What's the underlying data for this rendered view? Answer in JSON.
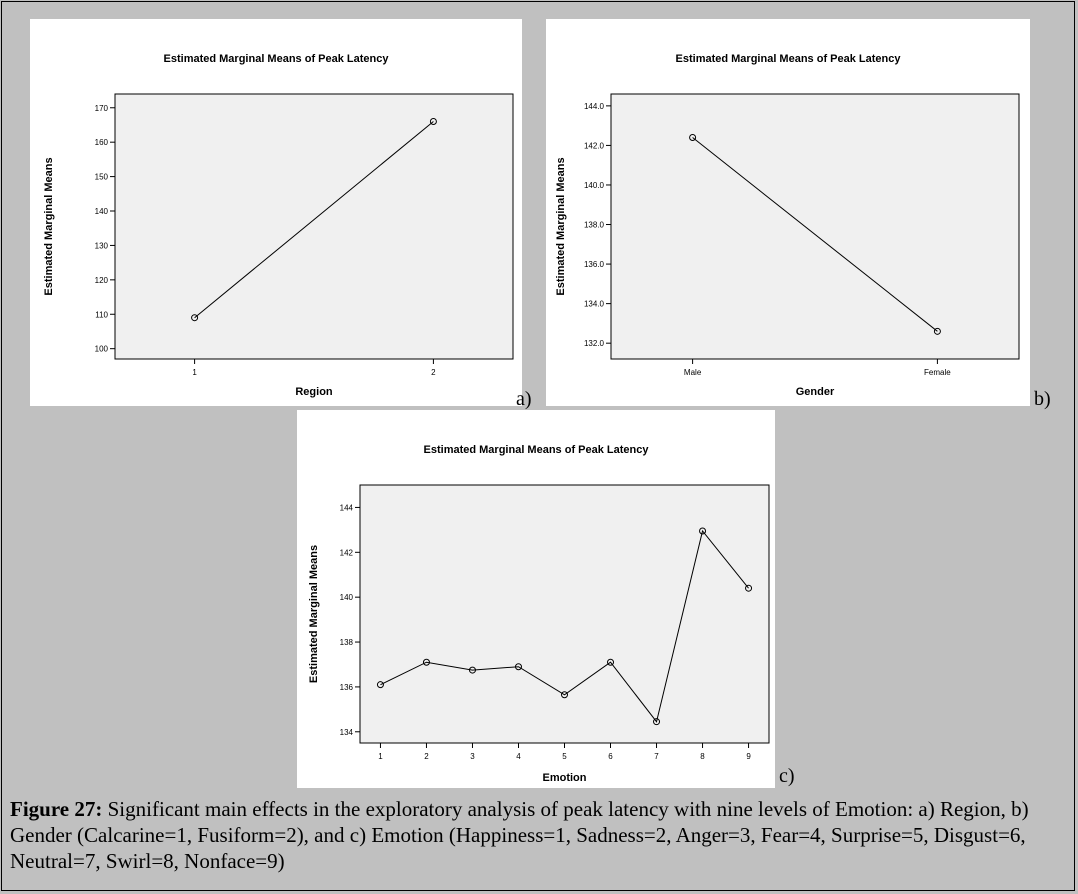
{
  "chart_data": [
    {
      "id": "a",
      "type": "line",
      "title": "Estimated Marginal Means of Peak Latency",
      "xlabel": "Region",
      "ylabel": "Estimated Marginal Means",
      "categories": [
        "1",
        "2"
      ],
      "values": [
        109.0,
        166.0
      ],
      "yticks": [
        100,
        110,
        120,
        130,
        140,
        150,
        160,
        170
      ],
      "ytick_labels": [
        "100",
        "110",
        "120",
        "130",
        "140",
        "150",
        "160",
        "170"
      ],
      "ylim": [
        97,
        174
      ],
      "grid": false,
      "panel_tag": "a)"
    },
    {
      "id": "b",
      "type": "line",
      "title": "Estimated Marginal Means of Peak Latency",
      "xlabel": "Gender",
      "ylabel": "Estimated Marginal Means",
      "categories": [
        "Male",
        "Female"
      ],
      "values": [
        142.4,
        132.6
      ],
      "yticks": [
        132,
        134,
        136,
        138,
        140,
        142,
        144
      ],
      "ytick_labels": [
        "132.0",
        "134.0",
        "136.0",
        "138.0",
        "140.0",
        "142.0",
        "144.0"
      ],
      "ylim": [
        131.2,
        144.6
      ],
      "grid": false,
      "panel_tag": "b)"
    },
    {
      "id": "c",
      "type": "line",
      "title": "Estimated Marginal Means of Peak Latency",
      "xlabel": "Emotion",
      "ylabel": "Estimated Marginal Means",
      "categories": [
        "1",
        "2",
        "3",
        "4",
        "5",
        "6",
        "7",
        "8",
        "9"
      ],
      "values": [
        136.1,
        137.1,
        136.75,
        136.9,
        135.65,
        137.1,
        134.45,
        142.95,
        140.4
      ],
      "yticks": [
        134,
        136,
        138,
        140,
        142,
        144
      ],
      "ytick_labels": [
        "134",
        "136",
        "138",
        "140",
        "142",
        "144"
      ],
      "ylim": [
        133.5,
        145.0
      ],
      "grid": false,
      "panel_tag": "c)"
    }
  ],
  "caption": {
    "label": "Figure 27:",
    "text": " Significant main effects in the exploratory analysis of peak latency with nine levels of Emotion: a) Region, b) Gender (Calcarine=1, Fusiform=2), and c) Emotion (Happiness=1, Sadness=2, Anger=3, Fear=4, Surprise=5, Disgust=6, Neutral=7, Swirl=8, Nonface=9)"
  },
  "colors": {
    "page_background": "#c0c0c0",
    "panel_background": "#ffffff",
    "plot_area": "#f0f0f0",
    "line": "#000000"
  }
}
